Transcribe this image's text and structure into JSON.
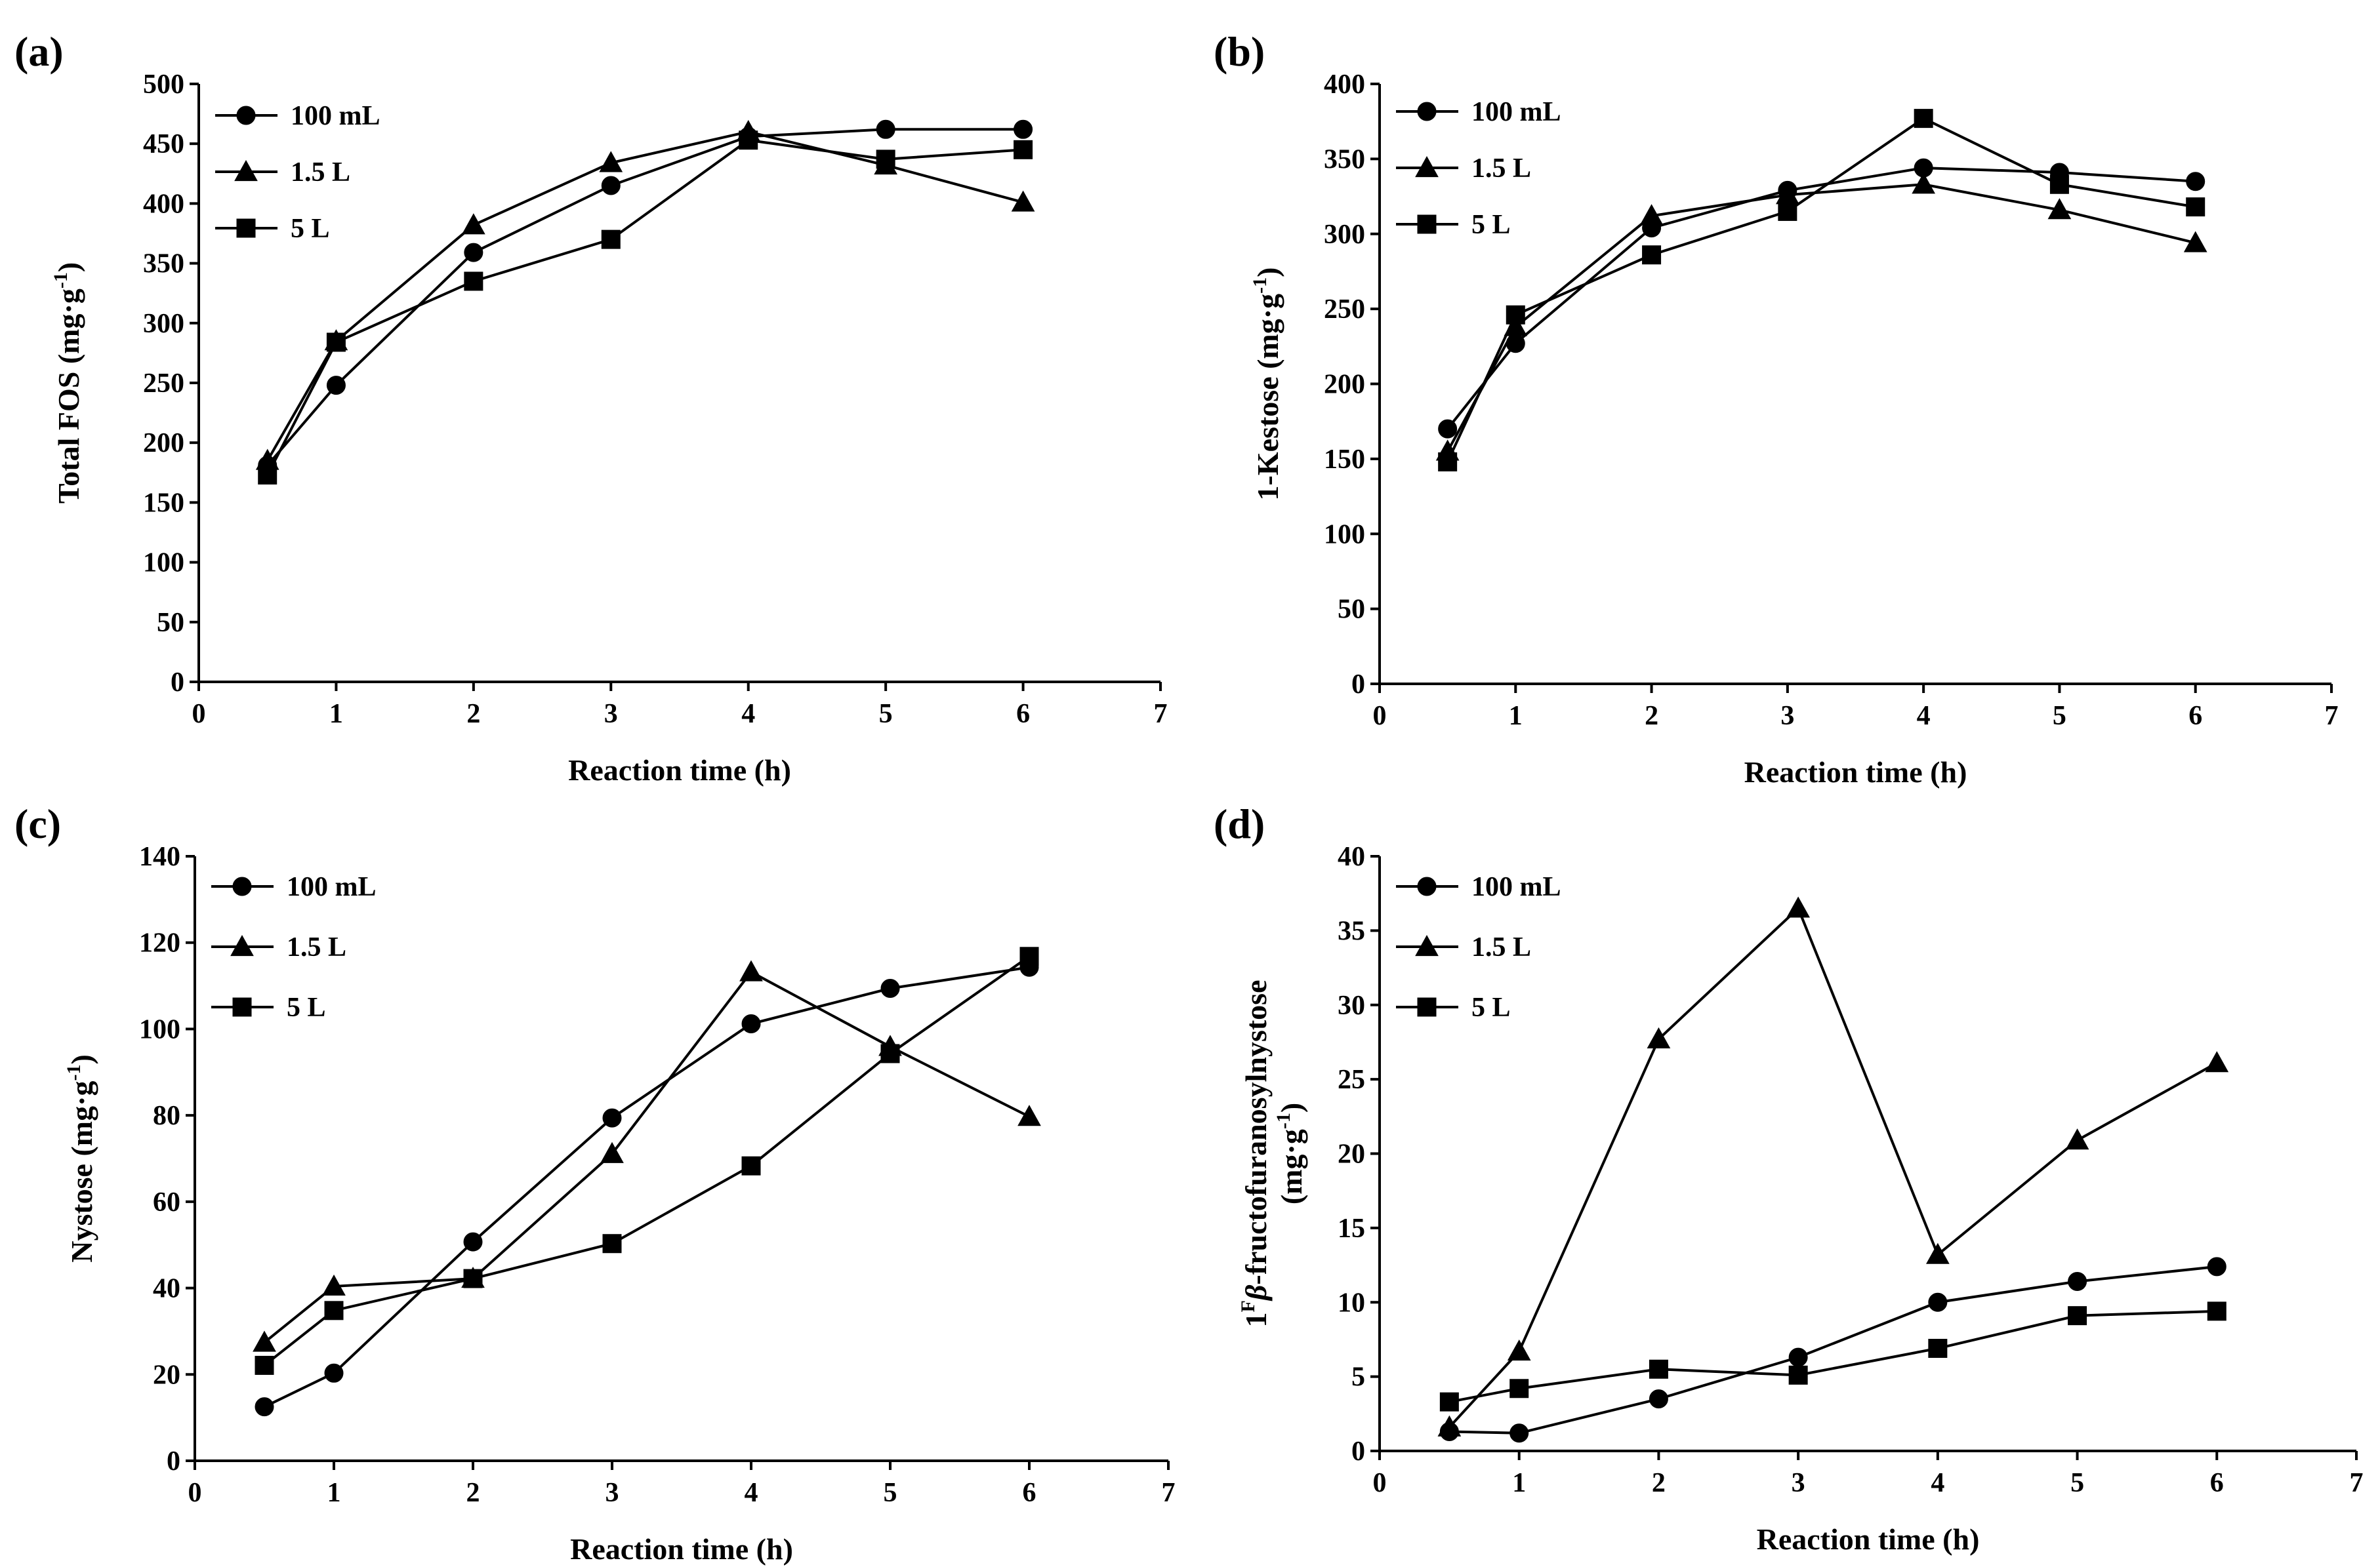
{
  "chart_data": [
    {
      "type": "line",
      "panel": "(a)",
      "xlabel": "Reaction time (h)",
      "ylabel": "Total FOS (mg·g",
      "ylabel_sup": "-1",
      "ylabel_tail": ")",
      "xlim": [
        0,
        7
      ],
      "ylim": [
        0,
        500
      ],
      "xticks": [
        0,
        1,
        2,
        3,
        4,
        5,
        6,
        7
      ],
      "yticks": [
        0,
        50,
        100,
        150,
        200,
        250,
        300,
        350,
        400,
        450,
        500
      ],
      "x": [
        0.5,
        1,
        2,
        3,
        4,
        5,
        6
      ],
      "series": [
        {
          "name": "100 mL",
          "marker": "circle",
          "values": [
            181,
            248,
            359,
            415,
            456,
            462,
            462
          ]
        },
        {
          "name": "1.5 L",
          "marker": "triangle",
          "values": [
            185,
            285,
            382,
            434,
            460,
            432,
            401
          ]
        },
        {
          "name": "5 L",
          "marker": "square",
          "values": [
            173,
            284,
            335,
            370,
            453,
            437,
            445
          ]
        }
      ]
    },
    {
      "type": "line",
      "panel": "(b)",
      "xlabel": "Reaction time (h)",
      "ylabel": "1-Kestose (mg·g",
      "ylabel_sup": "-1",
      "ylabel_tail": ")",
      "xlim": [
        0,
        7
      ],
      "ylim": [
        0,
        400
      ],
      "xticks": [
        0,
        1,
        2,
        3,
        4,
        5,
        6,
        7
      ],
      "yticks": [
        0,
        50,
        100,
        150,
        200,
        250,
        300,
        350,
        400
      ],
      "x": [
        0.5,
        1,
        2,
        3,
        4,
        5,
        6
      ],
      "series": [
        {
          "name": "100 mL",
          "marker": "circle",
          "values": [
            170,
            227,
            304,
            329,
            344,
            341,
            335
          ]
        },
        {
          "name": "1.5 L",
          "marker": "triangle",
          "values": [
            155,
            238,
            312,
            326,
            333,
            316,
            294
          ]
        },
        {
          "name": "5 L",
          "marker": "square",
          "values": [
            148,
            246,
            286,
            315,
            377,
            333,
            318
          ]
        }
      ]
    },
    {
      "type": "line",
      "panel": "(c)",
      "xlabel": "Reaction time (h)",
      "ylabel": "Nystose (mg·g",
      "ylabel_sup": "-1",
      "ylabel_tail": ")",
      "xlim": [
        0,
        7
      ],
      "ylim": [
        0,
        140
      ],
      "xticks": [
        0,
        1,
        2,
        3,
        4,
        5,
        6,
        7
      ],
      "yticks": [
        0,
        20,
        40,
        60,
        80,
        100,
        120,
        140
      ],
      "x": [
        0.5,
        1,
        2,
        3,
        4,
        5,
        6
      ],
      "series": [
        {
          "name": "100 mL",
          "marker": "circle",
          "values": [
            12.5,
            20.3,
            50.7,
            79.4,
            101.2,
            109.4,
            114.3
          ]
        },
        {
          "name": "1.5 L",
          "marker": "triangle",
          "values": [
            27.4,
            40.4,
            42.2,
            71.1,
            113.2,
            95.9,
            79.7
          ]
        },
        {
          "name": "5 L",
          "marker": "square",
          "values": [
            22.1,
            34.8,
            42.2,
            50.3,
            68.3,
            94.3,
            116.8
          ]
        }
      ]
    },
    {
      "type": "line",
      "panel": "(d)",
      "xlabel": "Reaction time (h)",
      "ylabel": "-fructofuranosylnystose",
      "ylabel_prefix": "1",
      "ylabel_prefix_sup": "F",
      "ylabel_beta": "β",
      "ylabel_line2": "(mg·g",
      "ylabel_sup": "-1",
      "ylabel_tail": ")",
      "xlim": [
        0,
        7
      ],
      "ylim": [
        0,
        40
      ],
      "xticks": [
        0,
        1,
        2,
        3,
        4,
        5,
        6,
        7
      ],
      "yticks": [
        0,
        5,
        10,
        15,
        20,
        25,
        30,
        35,
        40
      ],
      "x": [
        0.5,
        1,
        2,
        3,
        4,
        5,
        6
      ],
      "series": [
        {
          "name": "100 mL",
          "marker": "circle",
          "values": [
            1.3,
            1.2,
            3.5,
            6.3,
            10.0,
            11.4,
            12.4
          ]
        },
        {
          "name": "1.5 L",
          "marker": "triangle",
          "values": [
            1.6,
            6.7,
            27.7,
            36.5,
            13.2,
            20.9,
            26.1
          ]
        },
        {
          "name": "5 L",
          "marker": "square",
          "values": [
            3.3,
            4.2,
            5.5,
            5.1,
            6.9,
            9.1,
            9.4
          ]
        }
      ]
    }
  ]
}
